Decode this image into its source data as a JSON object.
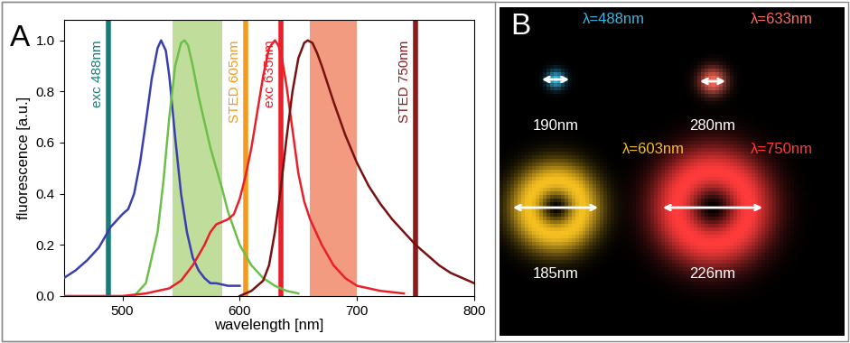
{
  "chart_data": {
    "type": "line",
    "panel_label": "A",
    "x_label": "wavelength [nm]",
    "y_label": "fluorescence [a.u.]",
    "xlim": [
      450,
      800
    ],
    "xticks": [
      500,
      600,
      700,
      800
    ],
    "ylim": [
      0,
      1.08
    ],
    "yticks": [
      {
        "value": 0,
        "label": "0.0"
      },
      {
        "value": 0.2,
        "label": "0.2"
      },
      {
        "value": 0.4,
        "label": "0.4"
      },
      {
        "value": 0.6,
        "label": "0.6"
      },
      {
        "value": 0.8,
        "label": "0.8"
      },
      {
        "value": 1.0,
        "label": "1.0"
      }
    ],
    "grid": false,
    "series": [
      {
        "color": "#3a3fb0",
        "x": [
          450,
          460,
          470,
          480,
          490,
          500,
          505,
          510,
          515,
          520,
          525,
          530,
          533,
          537,
          540,
          545,
          550,
          555,
          560,
          565,
          570,
          575,
          580,
          590,
          600
        ],
        "values": [
          0.07,
          0.1,
          0.14,
          0.19,
          0.27,
          0.32,
          0.34,
          0.4,
          0.52,
          0.68,
          0.85,
          0.97,
          1.0,
          0.96,
          0.86,
          0.62,
          0.4,
          0.25,
          0.15,
          0.1,
          0.07,
          0.05,
          0.05,
          0.04,
          0.04
        ]
      },
      {
        "color": "#6cc04a",
        "x": [
          510,
          520,
          530,
          535,
          540,
          545,
          550,
          553,
          556,
          560,
          565,
          570,
          575,
          580,
          585,
          590,
          600,
          610,
          620,
          630,
          640,
          650
        ],
        "values": [
          0.0,
          0.05,
          0.25,
          0.45,
          0.7,
          0.9,
          0.99,
          1.0,
          0.98,
          0.9,
          0.78,
          0.68,
          0.58,
          0.5,
          0.42,
          0.33,
          0.2,
          0.12,
          0.07,
          0.04,
          0.02,
          0.01
        ]
      },
      {
        "color": "#e8202a",
        "x": [
          450,
          500,
          520,
          540,
          550,
          560,
          570,
          575,
          580,
          585,
          590,
          595,
          600,
          605,
          610,
          615,
          620,
          625,
          630,
          633,
          636,
          640,
          645,
          650,
          655,
          660,
          670,
          680,
          690,
          700,
          720,
          740
        ],
        "values": [
          0.0,
          0.0,
          0.01,
          0.03,
          0.06,
          0.12,
          0.2,
          0.25,
          0.28,
          0.29,
          0.3,
          0.32,
          0.38,
          0.47,
          0.58,
          0.72,
          0.86,
          0.97,
          1.0,
          0.98,
          0.93,
          0.82,
          0.65,
          0.48,
          0.37,
          0.3,
          0.2,
          0.12,
          0.07,
          0.04,
          0.02,
          0.01
        ]
      },
      {
        "color": "#7a1010",
        "x": [
          600,
          610,
          620,
          625,
          630,
          635,
          640,
          645,
          650,
          655,
          658,
          662,
          666,
          670,
          675,
          680,
          690,
          700,
          710,
          720,
          730,
          740,
          750,
          760,
          770,
          780,
          790,
          800
        ],
        "values": [
          0.0,
          0.02,
          0.06,
          0.12,
          0.25,
          0.42,
          0.62,
          0.8,
          0.93,
          0.99,
          1.0,
          0.99,
          0.95,
          0.9,
          0.83,
          0.76,
          0.63,
          0.52,
          0.43,
          0.36,
          0.3,
          0.25,
          0.2,
          0.16,
          0.12,
          0.09,
          0.07,
          0.05
        ]
      }
    ],
    "bands": [
      {
        "range": [
          543,
          585
        ],
        "color": "#b5d88a"
      },
      {
        "range": [
          660,
          700
        ],
        "color": "#f08a6a"
      }
    ],
    "lines": [
      {
        "x": 488,
        "label": "exc 488nm",
        "color": "#177d7a"
      },
      {
        "x": 605,
        "label": "STED 605nm",
        "color": "#f39a1e"
      },
      {
        "x": 635,
        "label": "exc 635nm",
        "color": "#e8202a"
      },
      {
        "x": 750,
        "label": "STED 750nm",
        "color": "#8b1a1a"
      }
    ]
  },
  "panel_b": {
    "panel_label": "B",
    "spots": [
      {
        "type": "spot",
        "title": "λ=488nm",
        "size": "190nm",
        "color": "#39b5e0"
      },
      {
        "type": "spot",
        "title": "λ=633nm",
        "size": "280nm",
        "color": "#ff6a5a"
      },
      {
        "type": "donut",
        "title": "λ=603nm",
        "size": "185nm",
        "color": "#f5c020"
      },
      {
        "type": "donut",
        "title": "λ=750nm",
        "size": "226nm",
        "color": "#ff3b3b"
      }
    ]
  }
}
